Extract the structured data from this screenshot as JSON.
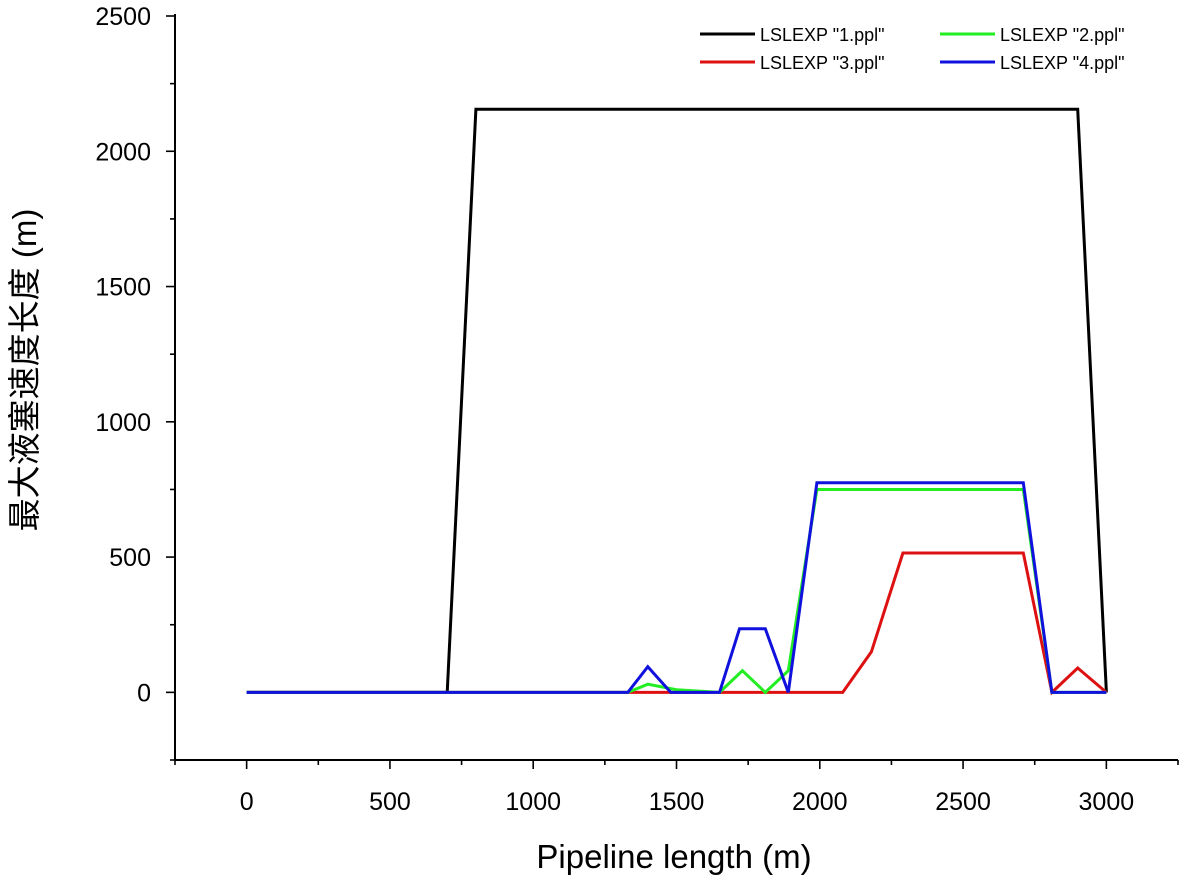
{
  "chart_data": {
    "type": "line",
    "title": "",
    "xlabel": "Pipeline length (m)",
    "ylabel": "最大液塞速度长度 (m)",
    "xlim": [
      -250,
      3250
    ],
    "ylim": [
      -250,
      2500
    ],
    "xticks": [
      0,
      500,
      1000,
      1500,
      2000,
      2500,
      3000
    ],
    "xtick_labels": [
      "0",
      "500",
      "1000",
      "1500",
      "2000",
      "2500",
      "3000"
    ],
    "yticks": [
      0,
      500,
      1000,
      1500,
      2000,
      2500
    ],
    "ytick_labels": [
      "0",
      "500",
      "1000",
      "1500",
      "2000",
      "2500"
    ],
    "grid": false,
    "legend_position": "top-right",
    "series": [
      {
        "name": "LSLEXP \"1.ppl\"",
        "color": "#000000",
        "x": [
          0,
          700,
          800,
          2900,
          3000
        ],
        "y": [
          0,
          0,
          2155,
          2155,
          0
        ]
      },
      {
        "name": "LSLEXP \"2.ppl\"",
        "color": "#22ee22",
        "x": [
          0,
          1330,
          1400,
          1500,
          1650,
          1730,
          1810,
          1890,
          1990,
          2710,
          2810,
          3000
        ],
        "y": [
          0,
          0,
          30,
          10,
          0,
          80,
          0,
          80,
          750,
          750,
          0,
          0
        ]
      },
      {
        "name": "LSLEXP \"3.ppl\"",
        "color": "#dd1111",
        "x": [
          0,
          2080,
          2180,
          2290,
          2710,
          2810,
          2900,
          3000
        ],
        "y": [
          0,
          0,
          150,
          515,
          515,
          0,
          90,
          0
        ]
      },
      {
        "name": "LSLEXP \"4.ppl\"",
        "color": "#1111dd",
        "x": [
          0,
          1330,
          1400,
          1480,
          1650,
          1720,
          1810,
          1890,
          1990,
          2710,
          2810,
          3000
        ],
        "y": [
          0,
          0,
          95,
          0,
          0,
          235,
          235,
          0,
          775,
          775,
          0,
          0
        ]
      }
    ]
  }
}
